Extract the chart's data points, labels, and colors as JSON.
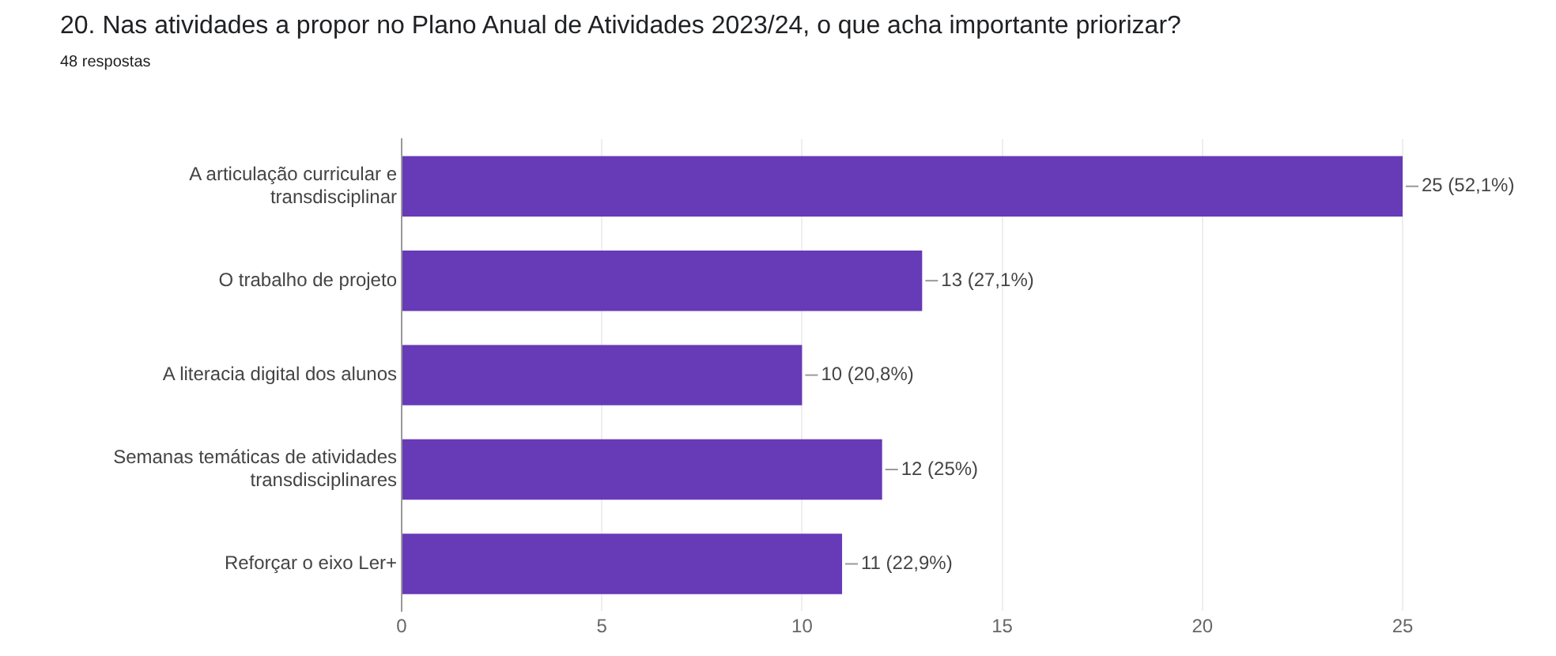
{
  "chart_data": {
    "type": "bar",
    "orientation": "horizontal",
    "title": "20. Nas atividades a propor no Plano Anual de Atividades 2023/24, o que acha importante priorizar?",
    "subtitle": "48 respostas",
    "categories": [
      "A articulação curricular e transdisciplinar",
      "O trabalho de projeto",
      "A literacia digital dos alunos",
      "Semanas temáticas de atividades transdisciplinares",
      "Reforçar o eixo Ler+"
    ],
    "values": [
      25,
      13,
      10,
      12,
      11
    ],
    "value_labels": [
      "25 (52,1%)",
      "13 (27,1%)",
      "10 (20,8%)",
      "12 (25%)",
      "11 (22,9%)"
    ],
    "color": "#673ab7",
    "xlim": [
      0,
      25
    ],
    "xticks": [
      0,
      5,
      10,
      15,
      20,
      25
    ],
    "grid": "x",
    "legend": false
  }
}
